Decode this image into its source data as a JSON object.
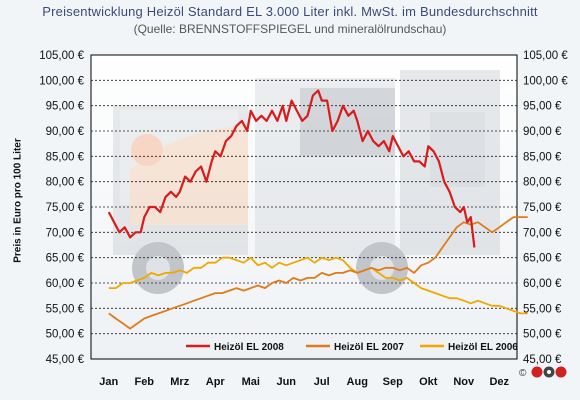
{
  "title": "Preisentwicklung Heizöl Standard EL 3.000 Liter inkl. MwSt. im Bundesdurchschnitt",
  "subtitle": "(Quelle: BRENNSTOFFSPIEGEL und mineralölrundschau)",
  "chart_data": {
    "type": "line",
    "ylabel": "Preis in Euro pro 100 Liter",
    "ylim": [
      45,
      105
    ],
    "yticks": [
      45,
      50,
      55,
      60,
      65,
      70,
      75,
      80,
      85,
      90,
      95,
      100,
      105
    ],
    "ytick_labels": [
      "45,00 €",
      "50,00 €",
      "55,00 €",
      "60,00 €",
      "65,00 €",
      "70,00 €",
      "75,00 €",
      "80,00 €",
      "85,00 €",
      "90,00 €",
      "95,00 €",
      "100,00 €",
      "105,00 €"
    ],
    "categories": [
      "Jan",
      "Feb",
      "Mrz",
      "Apr",
      "Mai",
      "Jun",
      "Jul",
      "Aug",
      "Sep",
      "Okt",
      "Nov",
      "Dez"
    ],
    "grid": "horizontal dashed",
    "legend_position": "bottom",
    "colors": {
      "Heizöl EL 2008": "#d81b1b",
      "Heizöl EL 2007": "#e07b1a",
      "Heizöl EL 2006": "#f0a800"
    },
    "series": [
      {
        "name": "Heizöl EL 2008",
        "x": [
          0,
          0.15,
          0.3,
          0.45,
          0.6,
          0.75,
          0.9,
          1.0,
          1.15,
          1.3,
          1.45,
          1.6,
          1.75,
          1.9,
          2.0,
          2.15,
          2.3,
          2.45,
          2.6,
          2.75,
          2.9,
          3.0,
          3.15,
          3.3,
          3.45,
          3.6,
          3.75,
          3.9,
          4.0,
          4.15,
          4.3,
          4.45,
          4.6,
          4.75,
          4.9,
          5.0,
          5.15,
          5.3,
          5.45,
          5.6,
          5.75,
          5.9,
          6.0,
          6.15,
          6.3,
          6.45,
          6.6,
          6.75,
          6.9,
          7.0,
          7.15,
          7.3,
          7.45,
          7.6,
          7.75,
          7.9,
          8.0,
          8.15,
          8.3,
          8.45,
          8.6,
          8.75,
          8.9,
          9.0,
          9.15,
          9.3,
          9.45,
          9.6,
          9.75,
          9.9,
          10.0,
          10.1,
          10.2,
          10.3
        ],
        "values": [
          74,
          72,
          70,
          71,
          69,
          70,
          70,
          73,
          75,
          75,
          74,
          77,
          78,
          77,
          78,
          81,
          80,
          82,
          83,
          80,
          84,
          86,
          85,
          88,
          89,
          91,
          92,
          90,
          94,
          92,
          93,
          92,
          94,
          92,
          95,
          92,
          96,
          94,
          92,
          93,
          97,
          98,
          96,
          96,
          90,
          92,
          95,
          93,
          94,
          92,
          88,
          90,
          88,
          87,
          88,
          86,
          89,
          87,
          85,
          86,
          84,
          84,
          83,
          87,
          86,
          84,
          80,
          78,
          75,
          74,
          75,
          72,
          73,
          67
        ]
      },
      {
        "name": "Heizöl EL 2007",
        "x": [
          0,
          0.2,
          0.4,
          0.6,
          0.8,
          1.0,
          1.2,
          1.4,
          1.6,
          1.8,
          2.0,
          2.2,
          2.4,
          2.6,
          2.8,
          3.0,
          3.2,
          3.4,
          3.6,
          3.8,
          4.0,
          4.2,
          4.4,
          4.6,
          4.8,
          5.0,
          5.2,
          5.4,
          5.6,
          5.8,
          6.0,
          6.2,
          6.4,
          6.6,
          6.8,
          7.0,
          7.2,
          7.4,
          7.6,
          7.8,
          8.0,
          8.2,
          8.4,
          8.6,
          8.8,
          9.0,
          9.2,
          9.4,
          9.6,
          9.8,
          10.0,
          10.2,
          10.4,
          10.6,
          10.8,
          11.0,
          11.2,
          11.4,
          11.6,
          11.8
        ],
        "values": [
          54,
          53,
          52,
          51,
          52,
          53,
          53.5,
          54,
          54.5,
          55,
          55.5,
          56,
          56.5,
          57,
          57.5,
          58,
          58,
          58.5,
          59,
          58.5,
          59,
          59.5,
          59,
          60,
          60.5,
          60,
          61,
          60.5,
          61,
          61,
          62,
          61.5,
          62,
          62,
          62.5,
          62,
          62.5,
          63,
          62.5,
          63,
          63,
          62.5,
          63,
          62,
          63.5,
          64,
          65,
          67,
          69,
          71,
          72,
          71.5,
          72,
          71,
          70,
          71,
          72,
          73,
          73,
          73
        ]
      },
      {
        "name": "Heizöl EL 2006",
        "x": [
          0,
          0.2,
          0.4,
          0.6,
          0.8,
          1.0,
          1.2,
          1.4,
          1.6,
          1.8,
          2.0,
          2.2,
          2.4,
          2.6,
          2.8,
          3.0,
          3.2,
          3.4,
          3.6,
          3.8,
          4.0,
          4.2,
          4.4,
          4.6,
          4.8,
          5.0,
          5.2,
          5.4,
          5.6,
          5.8,
          6.0,
          6.2,
          6.4,
          6.6,
          6.8,
          7.0,
          7.2,
          7.4,
          7.6,
          7.8,
          8.0,
          8.2,
          8.4,
          8.6,
          8.8,
          9.0,
          9.2,
          9.4,
          9.6,
          9.8,
          10.0,
          10.2,
          10.4,
          10.6,
          10.8,
          11.0,
          11.2,
          11.4,
          11.6,
          11.8
        ],
        "values": [
          59,
          59,
          60,
          60,
          60.5,
          61,
          62,
          61.5,
          62,
          62,
          62.5,
          62,
          63,
          63,
          64,
          64,
          65,
          65,
          64.5,
          64,
          65,
          63.5,
          64,
          63,
          64,
          63.5,
          64,
          64.5,
          65,
          64,
          65,
          64.5,
          65,
          64.5,
          63,
          62,
          62.5,
          63,
          62,
          61,
          61,
          60.5,
          61,
          60,
          59,
          58.5,
          58,
          57.5,
          57,
          57,
          56.5,
          56,
          56.5,
          56,
          55.5,
          55.5,
          55,
          54.5,
          54,
          54
        ]
      }
    ]
  },
  "logo_label": "©"
}
